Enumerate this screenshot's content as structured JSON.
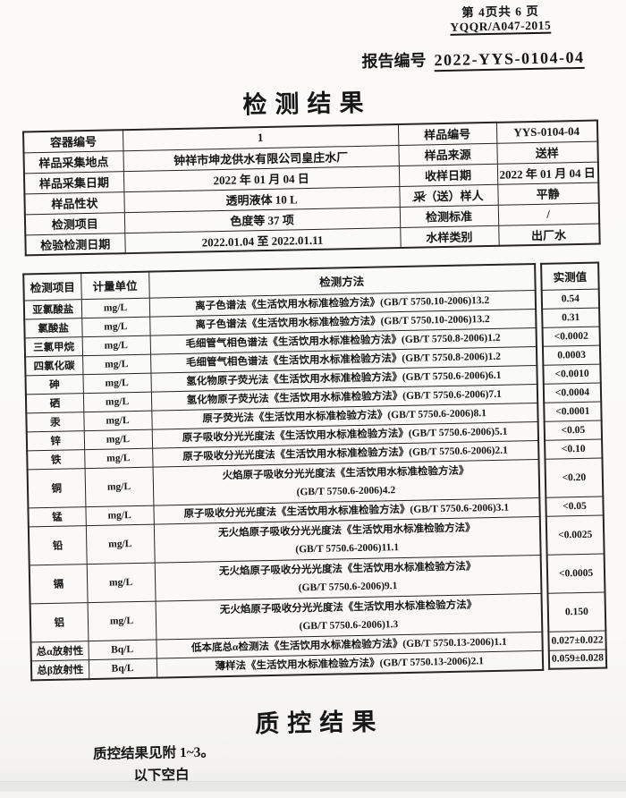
{
  "header": {
    "page_info": "第 4页共 6 页",
    "doc_code": "YQQR/A047-2015",
    "report_no_label": "报告编号",
    "report_no": "2022-YYS-0104-04"
  },
  "results": {
    "title": "检测结果",
    "info_rows": [
      {
        "l1": "容器编号",
        "v1": "1",
        "l2": "样品编号",
        "v2": "YYS-0104-04"
      },
      {
        "l1": "样品采集地点",
        "v1": "钟祥市坤龙供水有限公司皇庄水厂",
        "l2": "样品来源",
        "v2": "送样"
      },
      {
        "l1": "样品采集日期",
        "v1": "2022 年 01 月 04 日",
        "l2": "收样日期",
        "v2": "2022 年 01 月 04 日"
      },
      {
        "l1": "样品性状",
        "v1": "透明液体 10 L",
        "l2_strike": "采",
        "l2": "（送）样人",
        "v2": "平静"
      },
      {
        "l1": "检测项目",
        "v1": "色度等 37 项",
        "l2": "检测标准",
        "v2": "/"
      },
      {
        "l1": "检验检测日期",
        "v1": "2022.01.04 至 2022.01.11",
        "l2": "水样类别",
        "v2": "出厂水"
      }
    ],
    "table_headers": {
      "item": "检测项目",
      "unit": "计量单位",
      "method": "检测方法",
      "value": "实测值"
    },
    "rows": [
      {
        "item": "亚氯酸盐",
        "unit": "mg/L",
        "method": "离子色谱法《生活饮用水标准检验方法》(GB/T 5750.10-2006)13.2",
        "value": "0.54"
      },
      {
        "item": "氯酸盐",
        "unit": "mg/L",
        "method": "离子色谱法《生活饮用水标准检验方法》(GB/T 5750.10-2006)13.2",
        "value": "0.31"
      },
      {
        "item": "三氯甲烷",
        "unit": "mg/L",
        "method": "毛细管气相色谱法《生活饮用水标准检验方法》(GB/T 5750.8-2006)1.2",
        "value": "<0.0002"
      },
      {
        "item": "四氯化碳",
        "unit": "mg/L",
        "method": "毛细管气相色谱法《生活饮用水标准检验方法》(GB/T 5750.8-2006)1.2",
        "value": "0.0003"
      },
      {
        "item": "砷",
        "unit": "mg/L",
        "method": "氢化物原子荧光法《生活饮用水标准检验方法》(GB/T 5750.6-2006)6.1",
        "value": "<0.0010"
      },
      {
        "item": "硒",
        "unit": "mg/L",
        "method": "氢化物原子荧光法《生活饮用水标准检验方法》(GB/T 5750.6-2006)7.1",
        "value": "<0.0004"
      },
      {
        "item": "汞",
        "unit": "mg/L",
        "method": "原子荧光法《生活饮用水标准检验方法》(GB/T 5750.6-2006)8.1",
        "value": "<0.0001"
      },
      {
        "item": "锌",
        "unit": "mg/L",
        "method": "原子吸收分光光度法《生活饮用水标准检验方法》(GB/T 5750.6-2006)5.1",
        "value": "<0.05"
      },
      {
        "item": "铁",
        "unit": "mg/L",
        "method": "原子吸收分光光度法《生活饮用水标准检验方法》(GB/T 5750.6-2006)2.1",
        "value": "<0.10"
      },
      {
        "item": "铜",
        "unit": "mg/L",
        "method": "火焰原子吸收分光光度法《生活饮用水标准检验方法》",
        "method2": "(GB/T 5750.6-2006)4.2",
        "value": "<0.20"
      },
      {
        "item": "锰",
        "unit": "mg/L",
        "method": "原子吸收分光光度法《生活饮用水标准检验方法》(GB/T 5750.6-2006)3.1",
        "value": "<0.05"
      },
      {
        "item": "铅",
        "unit": "mg/L",
        "method": "无火焰原子吸收分光光度法《生活饮用水标准检验方法》",
        "method2": "(GB/T 5750.6-2006)11.1",
        "value": "<0.0025"
      },
      {
        "item": "镉",
        "unit": "mg/L",
        "method": "无火焰原子吸收分光光度法《生活饮用水标准检验方法》",
        "method2": "(GB/T 5750.6-2006)9.1",
        "value": "<0.0005"
      },
      {
        "item": "铝",
        "unit": "mg/L",
        "method": "无火焰原子吸收分光光度法《生活饮用水标准检验方法》",
        "method2": "(GB/T 5750.6-2006)1.3",
        "value": "0.150"
      },
      {
        "item": "总α放射性",
        "unit": "Bq/L",
        "method": "低本底总α检测法《生活饮用水标准检验方法》(GB/T 5750.13-2006)1.1",
        "value": "0.027±0.022"
      },
      {
        "item": "总β放射性",
        "unit": "Bq/L",
        "method": "薄样法《生活饮用水标准检验方法》(GB/T 5750.13-2006)2.1",
        "value": "0.059±0.028"
      }
    ]
  },
  "qc": {
    "title": "质控结果",
    "note1": "质控结果见附 1~3。",
    "note2": "以下空白"
  }
}
